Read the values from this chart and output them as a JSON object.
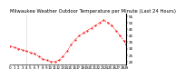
{
  "title": "Milwaukee Weather Outdoor Temperature per Minute (Last 24 Hours)",
  "line_color": "#ff0000",
  "background_color": "#ffffff",
  "ylim": [
    18,
    57
  ],
  "yticks": [
    20,
    25,
    30,
    35,
    40,
    45,
    50,
    55
  ],
  "x_points": [
    0,
    5,
    10,
    15,
    20,
    25,
    30,
    35,
    40,
    45,
    50,
    55,
    60,
    65,
    70,
    75,
    80,
    85,
    90,
    95,
    100,
    105,
    110,
    115,
    120,
    125,
    130,
    135,
    140,
    143
  ],
  "y_points": [
    32,
    31,
    30,
    29,
    28,
    27,
    26,
    24,
    22,
    21,
    20,
    20,
    21,
    24,
    28,
    33,
    37,
    40,
    42,
    44,
    46,
    48,
    50,
    52,
    50,
    48,
    44,
    40,
    36,
    33
  ],
  "midnight_x": 20,
  "title_fontsize": 3.8,
  "tick_fontsize": 3.0,
  "num_xticks": 30,
  "xlim": [
    0,
    143
  ]
}
